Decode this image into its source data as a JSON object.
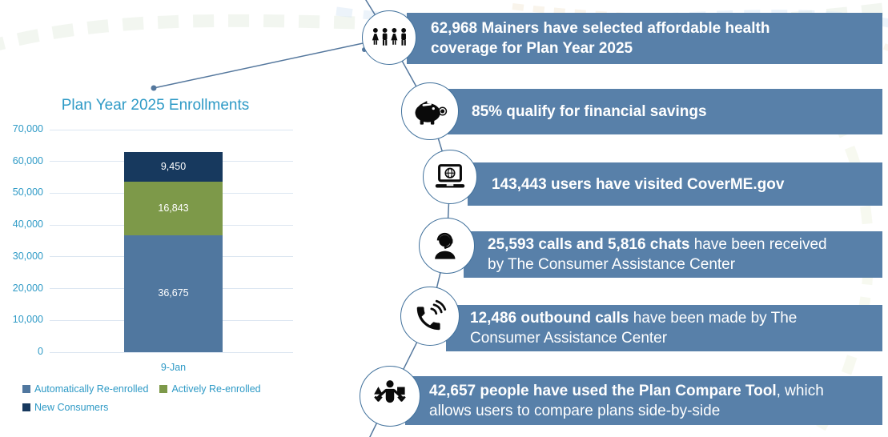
{
  "chart_data": {
    "type": "bar",
    "stacked": true,
    "title": "Plan Year 2025 Enrollments",
    "categories": [
      "9-Jan"
    ],
    "series": [
      {
        "name": "Automatically Re-enrolled",
        "values": [
          36675
        ],
        "label": "36,675",
        "color": "#50779f"
      },
      {
        "name": "Actively Re-enrolled",
        "values": [
          16843
        ],
        "label": "16,843",
        "color": "#7d9949"
      },
      {
        "name": "New Consumers",
        "values": [
          9450
        ],
        "label": "9,450",
        "color": "#17395e"
      }
    ],
    "ylim": [
      0,
      70000
    ],
    "yticks": [
      0,
      10000,
      20000,
      30000,
      40000,
      50000,
      60000,
      70000
    ],
    "ytick_labels": [
      "0",
      "10,000",
      "20,000",
      "30,000",
      "40,000",
      "50,000",
      "60,000",
      "70,000"
    ],
    "grid": true,
    "legend_position": "bottom-left"
  },
  "callouts": [
    {
      "icon": "people-group-icon",
      "bold": "62,968 Mainers have selected affordable health coverage for Plan Year 2025",
      "rest": ""
    },
    {
      "icon": "piggy-bank-icon",
      "bold": "85% qualify for financial savings",
      "rest": ""
    },
    {
      "icon": "laptop-globe-icon",
      "bold": "143,443 users have visited CoverME.gov",
      "rest": ""
    },
    {
      "icon": "headset-agent-icon",
      "bold": "25,593 calls and 5,816 chats",
      "rest": " have been received by The Consumer Assistance Center"
    },
    {
      "icon": "phone-ringing-icon",
      "bold": "12,486 outbound calls",
      "rest": " have been made by The Consumer Assistance Center"
    },
    {
      "icon": "plan-compare-icon",
      "bold": "42,657 people have used the Plan Compare Tool",
      "rest": ", which allows users to compare plans side-by-side"
    }
  ],
  "colors": {
    "callout_bar": "#5880a9",
    "accent_text": "#2e9ac6",
    "connector": "#54779d",
    "circle_border": "#41719c"
  }
}
